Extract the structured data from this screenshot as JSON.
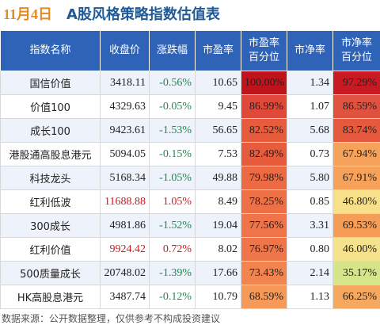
{
  "header": {
    "date": "11月4日",
    "title": "A股风格策略指数估值表"
  },
  "table": {
    "columns": [
      "指数名称",
      "收盘价",
      "涨跌幅",
      "市盈率",
      "市盈率\n百分位",
      "市净率",
      "市净率\n百分位"
    ],
    "columns_lines": [
      [
        "指数名称"
      ],
      [
        "收盘价"
      ],
      [
        "涨跌幅"
      ],
      [
        "市盈率"
      ],
      [
        "市盈率",
        "百分位"
      ],
      [
        "市净率"
      ],
      [
        "市净率",
        "百分位"
      ]
    ],
    "rows": [
      {
        "name": "国信价值",
        "close": "3418.11",
        "change": "-0.56%",
        "pe": "10.65",
        "pe_pct": "100.00%",
        "pb": "1.34",
        "pb_pct": "97.29%",
        "pe_color": "#c0141c",
        "pb_color": "#c81a22",
        "close_color": "#222222",
        "change_color": "#1e8a4a"
      },
      {
        "name": "价值100",
        "close": "4329.63",
        "change": "-0.05%",
        "pe": "9.45",
        "pe_pct": "86.99%",
        "pb": "1.07",
        "pb_pct": "86.59%",
        "pe_color": "#e0483a",
        "pb_color": "#e05240",
        "close_color": "#222222",
        "change_color": "#1e8a4a"
      },
      {
        "name": "成长100",
        "close": "9423.61",
        "change": "-1.53%",
        "pe": "56.65",
        "pe_pct": "82.52%",
        "pb": "5.68",
        "pb_pct": "83.74%",
        "pe_color": "#e75c3d",
        "pb_color": "#e55a3e",
        "close_color": "#222222",
        "change_color": "#1e8a4a"
      },
      {
        "name": "港股通高股息港元",
        "close": "5094.05",
        "change": "-0.15%",
        "pe": "7.53",
        "pe_pct": "82.49%",
        "pb": "0.73",
        "pb_pct": "67.94%",
        "pe_color": "#e75c3d",
        "pb_color": "#f6a25a",
        "close_color": "#222222",
        "change_color": "#1e8a4a"
      },
      {
        "name": "科技龙头",
        "close": "5168.34",
        "change": "-1.05%",
        "pe": "49.88",
        "pe_pct": "79.98%",
        "pb": "5.80",
        "pb_pct": "67.91%",
        "pe_color": "#ec6a44",
        "pb_color": "#f6a25a",
        "close_color": "#222222",
        "change_color": "#1e8a4a"
      },
      {
        "name": "红利低波",
        "close": "11688.88",
        "change": "1.05%",
        "pe": "8.49",
        "pe_pct": "78.25%",
        "pb": "0.85",
        "pb_pct": "46.80%",
        "pe_color": "#ee7047",
        "pb_color": "#f8e08a",
        "close_color": "#d0191b",
        "change_color": "#d0191b"
      },
      {
        "name": "300成长",
        "close": "4981.86",
        "change": "-1.52%",
        "pe": "19.04",
        "pe_pct": "77.56%",
        "pb": "3.31",
        "pb_pct": "69.53%",
        "pe_color": "#ef7449",
        "pb_color": "#f59d57",
        "close_color": "#222222",
        "change_color": "#1e8a4a"
      },
      {
        "name": "红利价值",
        "close": "9924.42",
        "change": "0.72%",
        "pe": "8.02",
        "pe_pct": "76.97%",
        "pb": "0.80",
        "pb_pct": "46.00%",
        "pe_color": "#ef764a",
        "pb_color": "#f6e28c",
        "close_color": "#d0191b",
        "change_color": "#d0191b"
      },
      {
        "name": "500质量成长",
        "close": "20748.02",
        "change": "-1.39%",
        "pe": "17.66",
        "pe_pct": "73.43%",
        "pb": "2.14",
        "pb_pct": "35.17%",
        "pe_color": "#f2844f",
        "pb_color": "#d6e48a",
        "close_color": "#222222",
        "change_color": "#1e8a4a"
      },
      {
        "name": "HK高股息港元",
        "close": "3487.74",
        "change": "-0.12%",
        "pe": "10.79",
        "pe_pct": "68.59%",
        "pb": "1.13",
        "pb_pct": "66.25%",
        "pe_color": "#f59a58",
        "pb_color": "#f6a85e",
        "close_color": "#222222",
        "change_color": "#1e8a4a"
      }
    ]
  },
  "footer": {
    "source": "数据来源：公开数据整理，仅供参考不构成投资建议"
  }
}
